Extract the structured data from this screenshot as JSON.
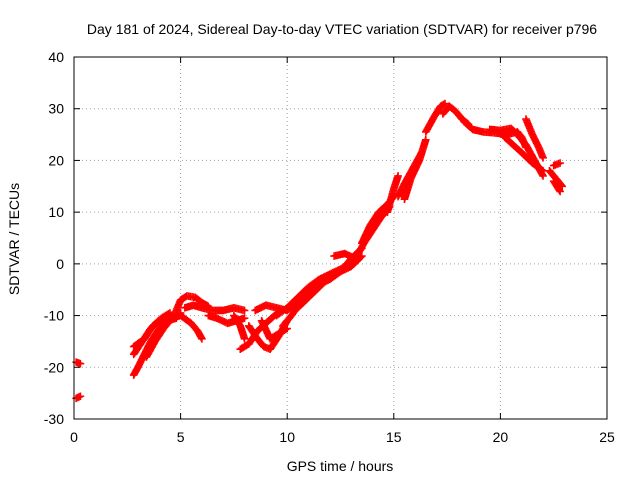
{
  "chart_data": {
    "type": "scatter",
    "title": "Day 181 of 2024, Sidereal Day-to-day VTEC variation (SDTVAR) for receiver p796",
    "xlabel": "GPS time / hours",
    "ylabel": "SDTVAR / TECUs",
    "xlim": [
      0,
      25
    ],
    "ylim": [
      -30,
      40
    ],
    "xticks": [
      0,
      5,
      10,
      15,
      20,
      25
    ],
    "yticks": [
      -30,
      -20,
      -10,
      0,
      10,
      20,
      30,
      40
    ],
    "xtick_labels": [
      "0",
      "5",
      "10",
      "15",
      "20",
      "25"
    ],
    "ytick_labels": [
      "-30",
      "-20",
      "-10",
      "0",
      "10",
      "20",
      "30",
      "40"
    ],
    "grid": true,
    "marker": "plus",
    "color": "#ff0000",
    "series": [
      {
        "name": "SDTVAR",
        "tracks": [
          [
            [
              0.1,
              -19.0
            ],
            [
              0.3,
              -19.3
            ]
          ],
          [
            [
              0.1,
              -26.0
            ],
            [
              0.3,
              -25.6
            ]
          ],
          [
            [
              2.8,
              -21.5
            ],
            [
              3.0,
              -20.0
            ],
            [
              3.3,
              -17.5
            ],
            [
              3.6,
              -15.0
            ],
            [
              4.0,
              -12.5
            ],
            [
              4.4,
              -11.0
            ],
            [
              4.8,
              -10.5
            ]
          ],
          [
            [
              2.8,
              -17.5
            ],
            [
              3.2,
              -15.0
            ],
            [
              3.6,
              -12.5
            ],
            [
              4.0,
              -11.0
            ],
            [
              4.5,
              -10.0
            ],
            [
              5.0,
              -9.5
            ]
          ],
          [
            [
              2.8,
              -16.0
            ],
            [
              3.3,
              -14.5
            ],
            [
              3.7,
              -12.0
            ],
            [
              4.1,
              -10.5
            ],
            [
              4.5,
              -9.5
            ]
          ],
          [
            [
              3.4,
              -18.0
            ],
            [
              3.8,
              -15.0
            ],
            [
              4.2,
              -12.5
            ],
            [
              4.6,
              -10.5
            ],
            [
              5.0,
              -10.0
            ],
            [
              5.5,
              -11.5
            ],
            [
              5.8,
              -13.0
            ],
            [
              6.0,
              -14.5
            ]
          ],
          [
            [
              4.8,
              -9.0
            ],
            [
              5.0,
              -7.0
            ],
            [
              5.3,
              -6.2
            ],
            [
              5.7,
              -6.5
            ],
            [
              6.0,
              -7.5
            ],
            [
              6.3,
              -8.2
            ]
          ],
          [
            [
              5.2,
              -8.5
            ],
            [
              5.6,
              -8.0
            ],
            [
              6.0,
              -8.5
            ],
            [
              6.5,
              -9.0
            ],
            [
              7.0,
              -9.0
            ],
            [
              7.5,
              -8.5
            ],
            [
              8.0,
              -9.0
            ]
          ],
          [
            [
              6.3,
              -10.0
            ],
            [
              6.7,
              -10.5
            ],
            [
              7.2,
              -11.5
            ],
            [
              7.6,
              -11.0
            ],
            [
              8.0,
              -10.5
            ]
          ],
          [
            [
              7.5,
              -10.0
            ],
            [
              7.8,
              -12.0
            ],
            [
              8.0,
              -14.5
            ]
          ],
          [
            [
              7.8,
              -16.5
            ],
            [
              8.2,
              -15.5
            ],
            [
              8.6,
              -13.0
            ],
            [
              9.0,
              -11.5
            ],
            [
              9.4,
              -10.0
            ],
            [
              9.8,
              -9.0
            ]
          ],
          [
            [
              8.2,
              -12.0
            ],
            [
              8.6,
              -14.5
            ],
            [
              8.9,
              -16.0
            ],
            [
              9.2,
              -16.5
            ],
            [
              9.6,
              -14.0
            ],
            [
              10.0,
              -11.0
            ]
          ],
          [
            [
              8.8,
              -11.0
            ],
            [
              9.2,
              -14.5
            ],
            [
              9.6,
              -13.5
            ],
            [
              10.0,
              -12.5
            ]
          ],
          [
            [
              8.5,
              -9.0
            ],
            [
              9.0,
              -8.0
            ],
            [
              9.5,
              -8.5
            ],
            [
              10.0,
              -9.0
            ],
            [
              10.5,
              -7.0
            ]
          ],
          [
            [
              9.5,
              -10.0
            ],
            [
              10.0,
              -8.5
            ],
            [
              10.5,
              -6.5
            ],
            [
              11.0,
              -4.5
            ],
            [
              11.5,
              -3.0
            ],
            [
              12.0,
              -2.0
            ],
            [
              12.5,
              -1.0
            ],
            [
              13.0,
              0.0
            ]
          ],
          [
            [
              9.8,
              -12.0
            ],
            [
              10.2,
              -10.0
            ],
            [
              10.6,
              -7.5
            ],
            [
              11.0,
              -5.5
            ],
            [
              11.5,
              -4.0
            ],
            [
              12.0,
              -3.0
            ],
            [
              12.5,
              -1.5
            ],
            [
              13.0,
              -0.5
            ],
            [
              13.5,
              1.5
            ]
          ],
          [
            [
              10.5,
              -8.5
            ],
            [
              11.0,
              -6.5
            ],
            [
              11.5,
              -4.5
            ],
            [
              12.0,
              -2.5
            ],
            [
              12.5,
              -1.5
            ],
            [
              13.0,
              1.0
            ],
            [
              13.5,
              3.0
            ]
          ],
          [
            [
              12.2,
              1.5
            ],
            [
              12.7,
              2.0
            ],
            [
              13.2,
              1.0
            ],
            [
              13.6,
              4.0
            ],
            [
              14.0,
              6.5
            ],
            [
              14.4,
              9.0
            ],
            [
              14.8,
              11.0
            ]
          ],
          [
            [
              13.5,
              4.0
            ],
            [
              13.9,
              7.5
            ],
            [
              14.3,
              10.0
            ],
            [
              14.7,
              11.5
            ],
            [
              15.0,
              13.0
            ]
          ],
          [
            [
              14.7,
              10.0
            ],
            [
              15.0,
              14.5
            ],
            [
              15.2,
              17.0
            ]
          ],
          [
            [
              15.2,
              13.0
            ],
            [
              15.5,
              15.5
            ],
            [
              15.9,
              18.5
            ],
            [
              16.3,
              21.5
            ]
          ],
          [
            [
              15.5,
              12.5
            ],
            [
              15.8,
              16.5
            ],
            [
              16.2,
              20.0
            ],
            [
              16.5,
              24.0
            ]
          ],
          [
            [
              16.5,
              25.5
            ],
            [
              16.9,
              28.5
            ],
            [
              17.2,
              30.5
            ],
            [
              17.4,
              31.0
            ]
          ],
          [
            [
              17.3,
              29.0
            ],
            [
              17.6,
              30.5
            ],
            [
              17.9,
              29.5
            ],
            [
              18.2,
              28.0
            ],
            [
              18.5,
              27.0
            ]
          ],
          [
            [
              18.3,
              27.5
            ],
            [
              18.7,
              26.0
            ],
            [
              19.2,
              25.5
            ],
            [
              19.8,
              25.3
            ],
            [
              20.3,
              25.0
            ],
            [
              20.8,
              25.5
            ],
            [
              21.0,
              24.5
            ],
            [
              21.2,
              22.5
            ]
          ],
          [
            [
              19.5,
              26.0
            ],
            [
              20.0,
              25.8
            ],
            [
              20.5,
              26.2
            ],
            [
              20.8,
              25.0
            ],
            [
              21.2,
              23.0
            ],
            [
              21.6,
              20.0
            ],
            [
              22.0,
              17.0
            ]
          ],
          [
            [
              20.2,
              24.5
            ],
            [
              20.6,
              23.0
            ],
            [
              21.0,
              21.5
            ],
            [
              21.5,
              19.5
            ],
            [
              22.0,
              18.0
            ]
          ],
          [
            [
              21.2,
              28.0
            ],
            [
              21.5,
              25.0
            ],
            [
              21.8,
              22.5
            ],
            [
              22.0,
              20.5
            ]
          ],
          [
            [
              22.3,
              18.0
            ],
            [
              22.6,
              16.5
            ],
            [
              22.9,
              15.0
            ]
          ],
          [
            [
              22.5,
              19.0
            ],
            [
              22.8,
              19.5
            ]
          ],
          [
            [
              22.5,
              16.0
            ],
            [
              22.8,
              14.0
            ]
          ]
        ]
      }
    ]
  }
}
